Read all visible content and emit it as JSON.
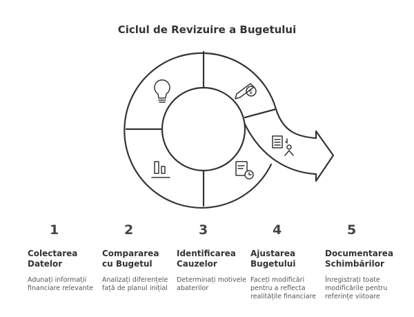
{
  "title": "Ciclul de Revizuire a Bugetului",
  "icons": [
    "lightbulb-icon",
    "pencil-dollar-icon",
    "checklist-person-icon",
    "clipboard-clock-icon",
    "bar-chart-icon"
  ],
  "steps": [
    {
      "number": "1",
      "title_line1": "Colectarea",
      "title_line2": "Datelor",
      "description": "Adunați informații financiare relevante"
    },
    {
      "number": "2",
      "title_line1": "Compararea",
      "title_line2": "cu Bugetul",
      "description": "Analizați diferențele față de planul inițial"
    },
    {
      "number": "3",
      "title_line1": "Identificarea",
      "title_line2": "Cauzelor",
      "description": "Determinați motivele abaterilor"
    },
    {
      "number": "4",
      "title_line1": "Ajustarea",
      "title_line2": "Bugetului",
      "description": "Faceți modificări pentru a reflecta realitățile financiare"
    },
    {
      "number": "5",
      "title_line1": "Documentarea",
      "title_line2": "Schimbărilor",
      "description": "Înregistrați toate modificările pentru referințe viitoare"
    }
  ]
}
